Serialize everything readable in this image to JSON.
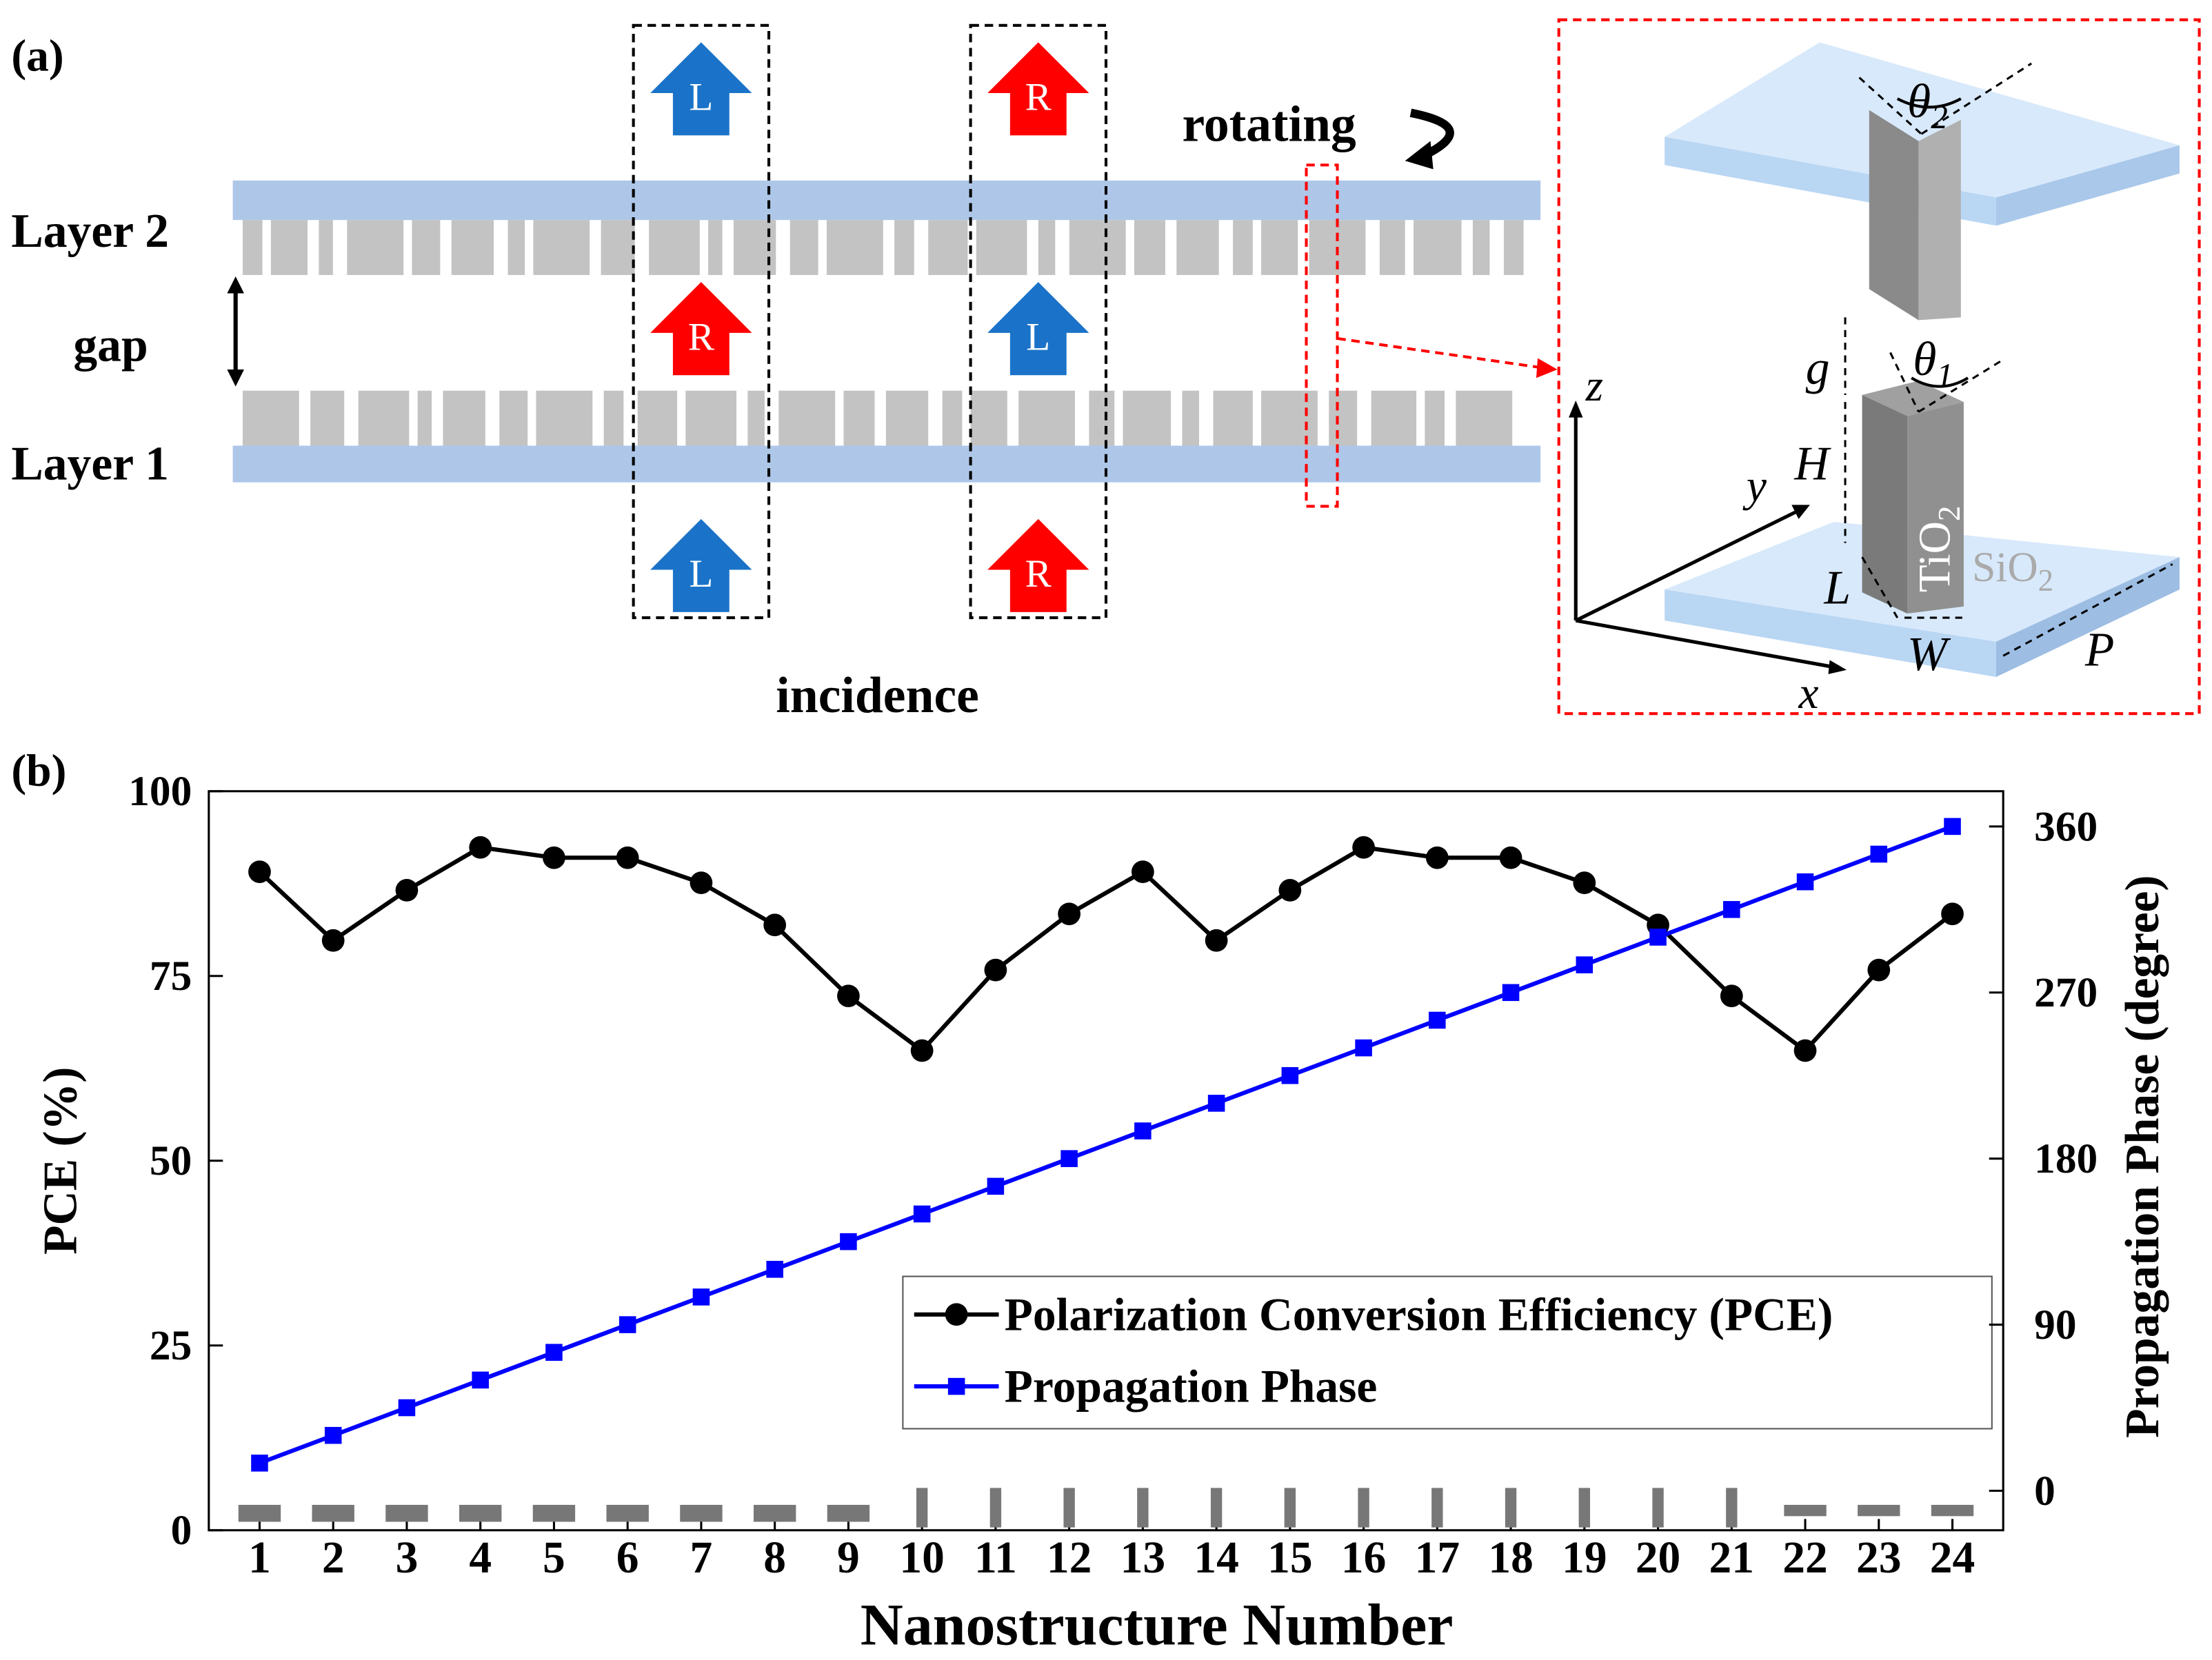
{
  "panel_a": {
    "label": "(a)",
    "layer2": "Layer 2",
    "gap": "gap",
    "layer1": "Layer 1",
    "rotating": "rotating",
    "incidence": "incidence",
    "arrows": [
      {
        "label": "L",
        "color": "#1a73c8"
      },
      {
        "label": "R",
        "color": "#ff0000"
      },
      {
        "label": "R",
        "color": "#ff0000"
      },
      {
        "label": "L",
        "color": "#1a73c8"
      },
      {
        "label": "L",
        "color": "#1a73c8"
      },
      {
        "label": "R",
        "color": "#ff0000"
      }
    ],
    "inset": {
      "theta2": {
        "symbol": "θ",
        "sub": "2"
      },
      "theta1": {
        "symbol": "θ",
        "sub": "1"
      },
      "g": "g",
      "H": "H",
      "L": "L",
      "W": "W",
      "P": "P",
      "z": "z",
      "y": "y",
      "x": "x",
      "pillar": {
        "symbol": "TiO",
        "sub": "2"
      },
      "substrate": {
        "symbol": "SiO",
        "sub": "2"
      }
    }
  },
  "chart_data": {
    "type": "line",
    "panel_label": "(b)",
    "xlabel": "Nanostructure Number",
    "ylabel": "PCE (%)",
    "y2label": "Propagation Phase (degree)",
    "x": [
      1,
      2,
      3,
      4,
      5,
      6,
      7,
      8,
      9,
      10,
      11,
      12,
      13,
      14,
      15,
      16,
      17,
      18,
      19,
      20,
      21,
      22,
      23,
      24
    ],
    "xlim": [
      0.31,
      24.69
    ],
    "xticks": [
      1,
      2,
      3,
      4,
      5,
      6,
      7,
      8,
      9,
      10,
      11,
      12,
      13,
      14,
      15,
      16,
      17,
      18,
      19,
      20,
      21,
      22,
      23,
      24
    ],
    "ylim": [
      0,
      100
    ],
    "yticks": [
      0,
      25,
      50,
      75,
      100
    ],
    "y2lim": [
      -21.4,
      379.1
    ],
    "y2ticks": [
      0,
      90,
      180,
      270,
      360
    ],
    "legend": "lower right",
    "series": [
      {
        "name": "Polarization Conversion Efficiency (PCE)",
        "color": "#000000",
        "marker": "circle",
        "values": [
          89.1,
          79.8,
          86.6,
          92.4,
          91,
          91,
          87.6,
          81.9,
          72.3,
          64.9,
          75.8,
          83.4,
          89.1,
          79.8,
          86.6,
          92.4,
          91,
          91,
          87.6,
          81.9,
          72.3,
          64.9,
          75.8,
          83.4
        ]
      },
      {
        "name": "Propagation Phase",
        "color": "#0000ff",
        "marker": "square",
        "axis": "y2",
        "values": [
          15,
          30,
          45,
          60,
          75,
          90,
          105,
          120,
          135,
          150,
          165,
          180,
          195,
          210,
          225,
          240,
          255,
          270,
          285,
          300,
          315,
          330,
          345,
          360
        ]
      }
    ]
  }
}
